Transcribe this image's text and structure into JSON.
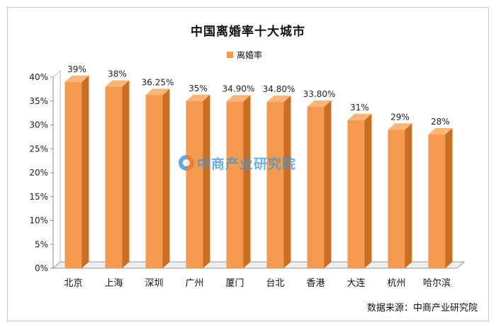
{
  "chart_data": {
    "type": "bar",
    "title": "中国离婚率十大城市",
    "categories": [
      "北京",
      "上海",
      "深圳",
      "广州",
      "厦门",
      "台北",
      "香港",
      "大连",
      "杭州",
      "哈尔滨"
    ],
    "values": [
      39,
      38,
      36.25,
      35,
      34.9,
      34.8,
      33.8,
      31,
      29,
      28
    ],
    "data_labels": [
      "39%",
      "38%",
      "36.25%",
      "35%",
      "34.90%",
      "34.80%",
      "33.80%",
      "31%",
      "29%",
      "28%"
    ],
    "series": [
      {
        "name": "离婚率",
        "values": [
          39,
          38,
          36.25,
          35,
          34.9,
          34.8,
          33.8,
          31,
          29,
          28
        ]
      }
    ],
    "yticks": [
      "0%",
      "5%",
      "10%",
      "15%",
      "20%",
      "25%",
      "30%",
      "35%",
      "40%"
    ],
    "ylim": [
      0,
      40
    ],
    "ylabel": "",
    "xlabel": "",
    "grid": false,
    "legend_position": "top-center",
    "bar_color": "#f39a4e",
    "bar_side_color": "#c96f24",
    "bar_top_color": "#f8b57a"
  },
  "watermark": {
    "text": "中商产业研究院",
    "icon": "company-logo-icon"
  },
  "source": "数据来源：中商产业研究院"
}
